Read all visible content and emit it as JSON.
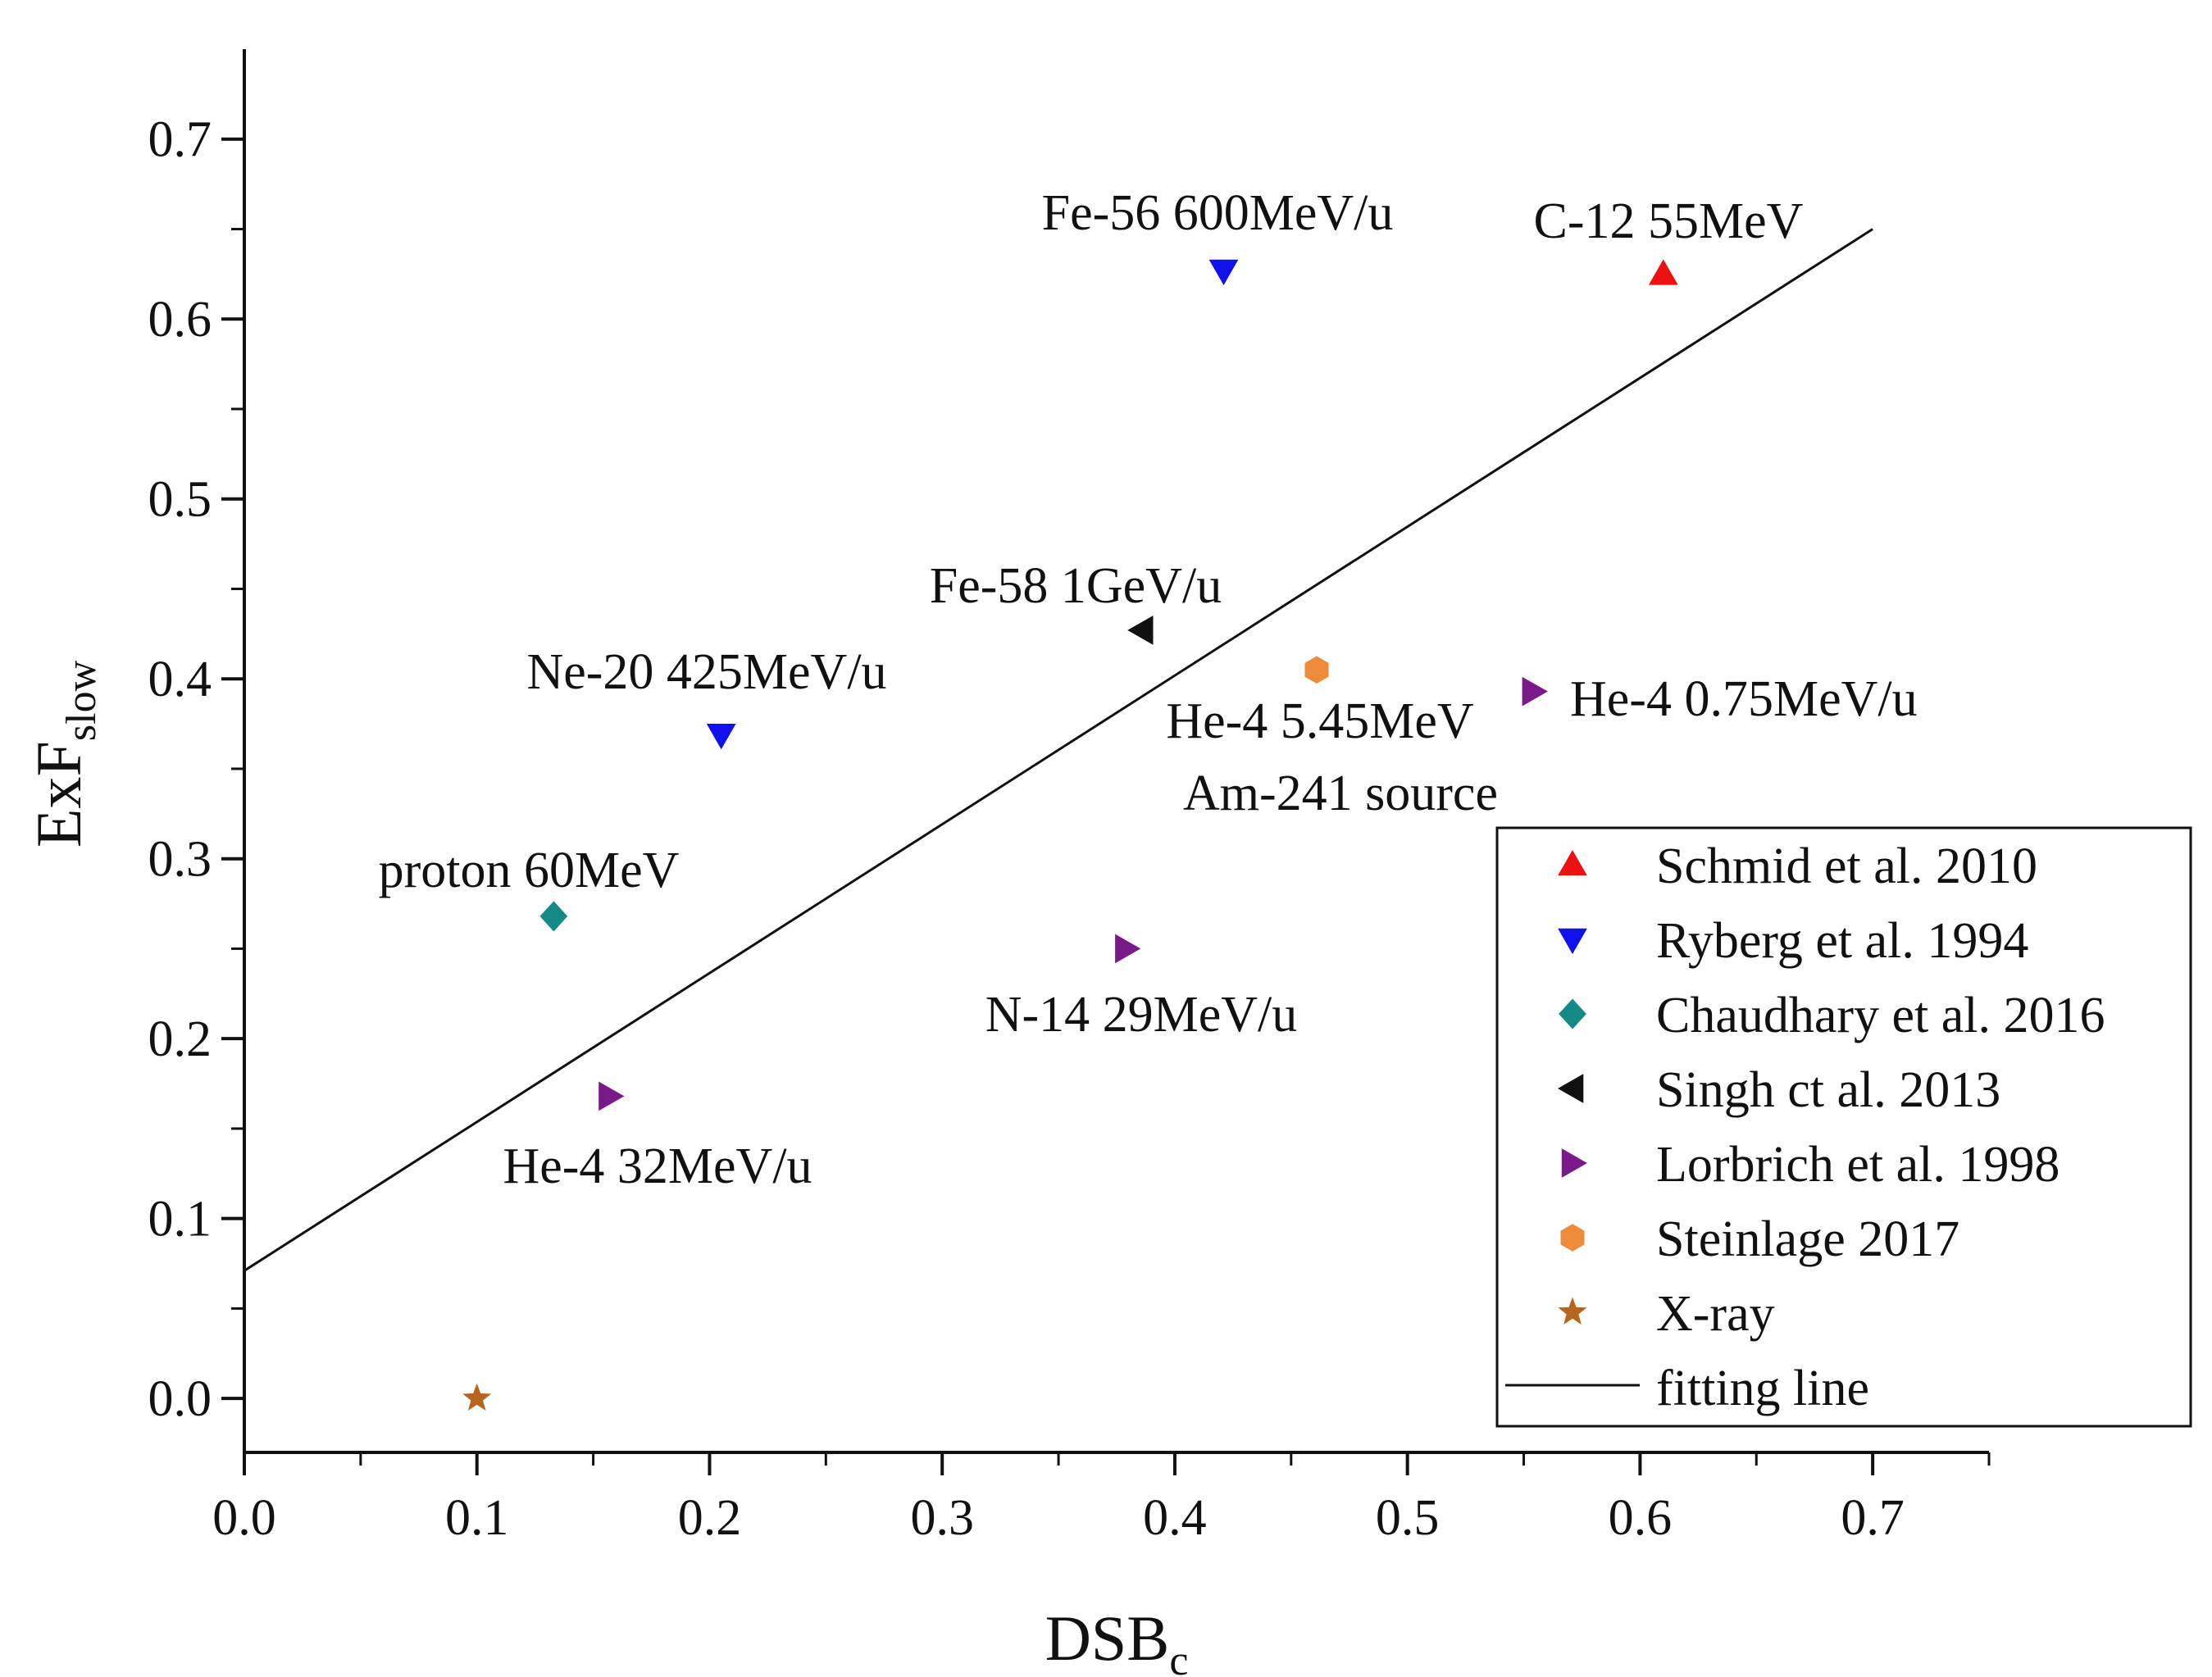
{
  "chart_data": {
    "type": "scatter",
    "xlabel": "DSB",
    "xlabel_sub": "c",
    "ylabel": "ExF",
    "ylabel_sub": "slow",
    "xlim": [
      0.0,
      0.75
    ],
    "ylim": [
      -0.03,
      0.75
    ],
    "xticks": [
      0.0,
      0.1,
      0.2,
      0.3,
      0.4,
      0.5,
      0.6,
      0.7
    ],
    "xtick_labels": [
      "0.0",
      "0.1",
      "0.2",
      "0.3",
      "0.4",
      "0.5",
      "0.6",
      "0.7"
    ],
    "yticks": [
      0.0,
      0.1,
      0.2,
      0.3,
      0.4,
      0.5,
      0.6,
      0.7
    ],
    "ytick_labels": [
      "0.0",
      "0.1",
      "0.2",
      "0.3",
      "0.4",
      "0.5",
      "0.6",
      "0.7"
    ],
    "grid": false,
    "legend_position": "bottom-right",
    "series": [
      {
        "name": "Schmid et al. 2010",
        "marker": "triangle-up",
        "color": "#ee1111",
        "points": [
          {
            "x": 0.61,
            "y": 0.625,
            "label": "C-12 55MeV"
          }
        ]
      },
      {
        "name": "Ryberg et al. 1994",
        "marker": "triangle-down",
        "color": "#1111ee",
        "points": [
          {
            "x": 0.421,
            "y": 0.627,
            "label": "Fe-56 600MeV/u"
          },
          {
            "x": 0.205,
            "y": 0.369,
            "label": "Ne-20 425MeV/u"
          }
        ]
      },
      {
        "name": "Chaudhary et al. 2016",
        "marker": "diamond",
        "color": "#138a86",
        "points": [
          {
            "x": 0.133,
            "y": 0.268,
            "label": "proton 60MeV"
          }
        ]
      },
      {
        "name": "Singh ct al. 2013",
        "marker": "triangle-left",
        "color": "#111111",
        "points": [
          {
            "x": 0.386,
            "y": 0.427,
            "label": "Fe-58 1GeV/u"
          }
        ]
      },
      {
        "name": "Lorbrich et al. 1998",
        "marker": "triangle-right",
        "color": "#7a1a8a",
        "points": [
          {
            "x": 0.554,
            "y": 0.393,
            "label": "He-4 0.75MeV/u"
          },
          {
            "x": 0.379,
            "y": 0.25,
            "label": "N-14 29MeV/u"
          },
          {
            "x": 0.157,
            "y": 0.168,
            "label": "He-4 32MeV/u"
          }
        ]
      },
      {
        "name": "Steinlage 2017",
        "marker": "hexagon",
        "color": "#ee8b3a",
        "points": [
          {
            "x": 0.461,
            "y": 0.405,
            "label": "He-4 5.45MeV",
            "label2": "Am-241 source"
          }
        ]
      },
      {
        "name": "X-ray",
        "marker": "star",
        "color": "#b5651d",
        "points": [
          {
            "x": 0.1,
            "y": 0.0,
            "label": ""
          }
        ]
      }
    ],
    "fit_line": {
      "name": "fitting line",
      "x": [
        0.0,
        0.7
      ],
      "y": [
        0.071,
        0.65
      ],
      "color": "#111111"
    }
  }
}
